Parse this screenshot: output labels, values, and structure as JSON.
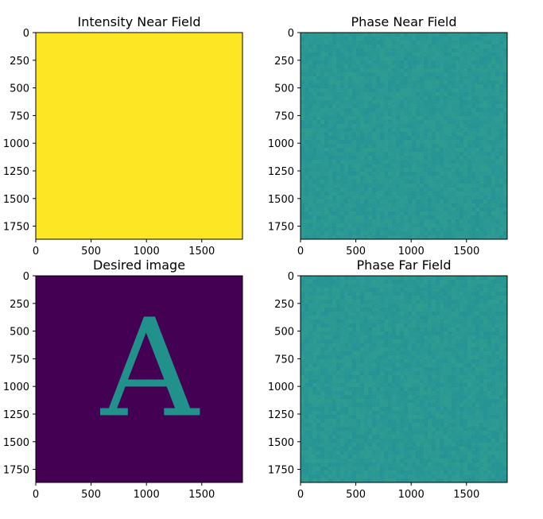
{
  "chart_data": [
    {
      "type": "heatmap",
      "title": "Intensity Near Field",
      "fill": "uniform",
      "colors": [
        "#fde725"
      ],
      "xticks": [
        0,
        500,
        1000,
        1500
      ],
      "yticks": [
        0,
        250,
        500,
        750,
        1000,
        1250,
        1500,
        1750
      ],
      "xlim": [
        0,
        1868
      ],
      "ylim": [
        1868,
        0
      ]
    },
    {
      "type": "heatmap",
      "title": "Phase Near Field",
      "fill": "noise",
      "colors": [
        "#21918c",
        "#1f8e8c",
        "#26948a",
        "#1c8a8d",
        "#2a9888"
      ],
      "xticks": [
        0,
        500,
        1000,
        1500
      ],
      "yticks": [
        0,
        250,
        500,
        750,
        1000,
        1250,
        1500,
        1750
      ],
      "xlim": [
        0,
        1868
      ],
      "ylim": [
        1868,
        0
      ]
    },
    {
      "type": "heatmap",
      "title": "Desired image",
      "fill": "glyph",
      "glyph": "A",
      "colors": [
        "#440154",
        "#21918c"
      ],
      "xticks": [
        0,
        500,
        1000,
        1500
      ],
      "yticks": [
        0,
        250,
        500,
        750,
        1000,
        1250,
        1500,
        1750
      ],
      "xlim": [
        0,
        1868
      ],
      "ylim": [
        1868,
        0
      ]
    },
    {
      "type": "heatmap",
      "title": "Phase Far Field",
      "fill": "noise",
      "colors": [
        "#21918c",
        "#1f8e8c",
        "#26948a",
        "#1c8a8d",
        "#2a9888"
      ],
      "xticks": [
        0,
        500,
        1000,
        1500
      ],
      "yticks": [
        0,
        250,
        500,
        750,
        1000,
        1250,
        1500,
        1750
      ],
      "xlim": [
        0,
        1868
      ],
      "ylim": [
        1868,
        0
      ]
    }
  ]
}
